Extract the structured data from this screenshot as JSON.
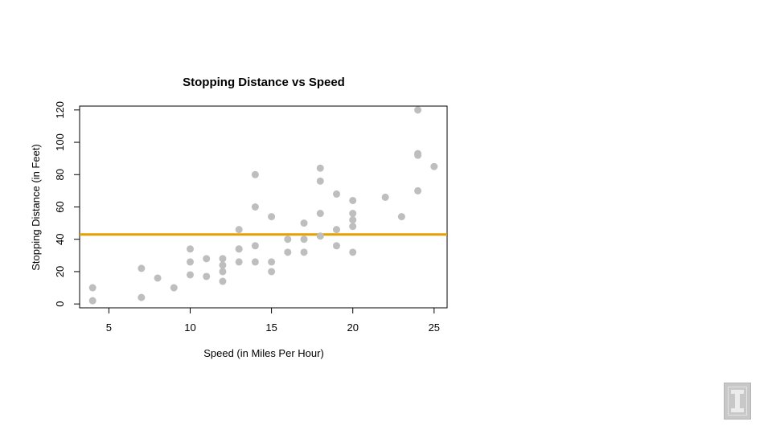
{
  "chart_data": {
    "type": "scatter",
    "title": "Stopping Distance vs Speed",
    "xlabel": "Speed (in Miles Per Hour)",
    "ylabel": "Stopping Distance (in Feet)",
    "xlim": [
      3.2,
      25.8
    ],
    "ylim": [
      -2.4,
      122.4
    ],
    "xticks": [
      5,
      10,
      15,
      20,
      25
    ],
    "yticks": [
      0,
      20,
      40,
      60,
      80,
      100,
      120
    ],
    "grid": false,
    "point_color": "#bebebe",
    "hline": {
      "y": 42.98,
      "color": "#e69f00"
    },
    "points": [
      [
        4,
        2
      ],
      [
        4,
        10
      ],
      [
        7,
        4
      ],
      [
        7,
        22
      ],
      [
        8,
        16
      ],
      [
        9,
        10
      ],
      [
        10,
        18
      ],
      [
        10,
        26
      ],
      [
        10,
        34
      ],
      [
        11,
        17
      ],
      [
        11,
        28
      ],
      [
        12,
        14
      ],
      [
        12,
        20
      ],
      [
        12,
        24
      ],
      [
        12,
        28
      ],
      [
        13,
        26
      ],
      [
        13,
        34
      ],
      [
        13,
        34
      ],
      [
        13,
        46
      ],
      [
        14,
        26
      ],
      [
        14,
        36
      ],
      [
        14,
        60
      ],
      [
        14,
        80
      ],
      [
        15,
        20
      ],
      [
        15,
        26
      ],
      [
        15,
        54
      ],
      [
        16,
        32
      ],
      [
        16,
        40
      ],
      [
        17,
        32
      ],
      [
        17,
        40
      ],
      [
        17,
        50
      ],
      [
        18,
        42
      ],
      [
        18,
        56
      ],
      [
        18,
        76
      ],
      [
        18,
        84
      ],
      [
        19,
        36
      ],
      [
        19,
        46
      ],
      [
        19,
        68
      ],
      [
        20,
        32
      ],
      [
        20,
        48
      ],
      [
        20,
        52
      ],
      [
        20,
        56
      ],
      [
        20,
        64
      ],
      [
        22,
        66
      ],
      [
        23,
        54
      ],
      [
        24,
        70
      ],
      [
        24,
        92
      ],
      [
        24,
        93
      ],
      [
        24,
        120
      ],
      [
        25,
        85
      ]
    ]
  }
}
